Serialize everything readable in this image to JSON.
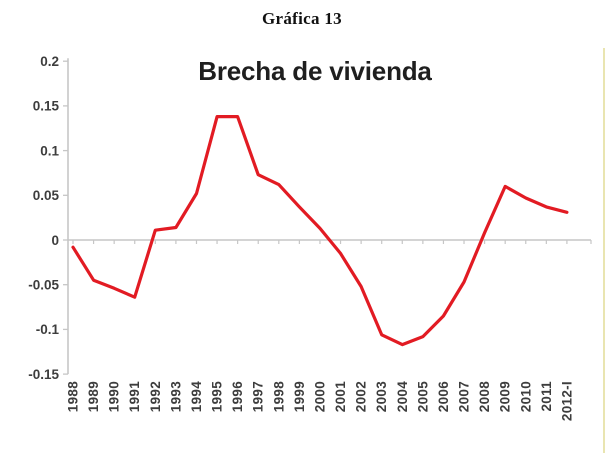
{
  "figure": {
    "label": "Gráfica 13"
  },
  "chart_data": {
    "type": "line",
    "title": "Brecha de vivienda",
    "xlabel": "",
    "ylabel": "",
    "categories": [
      "1988",
      "1989",
      "1990",
      "1991",
      "1992",
      "1993",
      "1994",
      "1995",
      "1996",
      "1997",
      "1998",
      "1999",
      "2000",
      "2001",
      "2002",
      "2003",
      "2004",
      "2005",
      "2006",
      "2007",
      "2008",
      "2009",
      "2010",
      "2011",
      "2012-I"
    ],
    "series": [
      {
        "name": "Brecha de vivienda",
        "color": "#e21b23",
        "values": [
          -0.008,
          -0.045,
          -0.054,
          -0.064,
          0.011,
          0.014,
          0.052,
          0.138,
          0.138,
          0.073,
          0.062,
          0.037,
          0.013,
          -0.015,
          -0.052,
          -0.106,
          -0.117,
          -0.108,
          -0.085,
          -0.047,
          0.008,
          0.06,
          0.047,
          0.037,
          0.031
        ]
      }
    ],
    "ylim": [
      -0.15,
      0.2
    ],
    "yticks": [
      {
        "value": 0.2,
        "label": "0.2"
      },
      {
        "value": 0.15,
        "label": "0.15"
      },
      {
        "value": 0.1,
        "label": "0.1"
      },
      {
        "value": 0.05,
        "label": "0.05"
      },
      {
        "value": 0,
        "label": "0"
      },
      {
        "value": -0.05,
        "label": "-0.05"
      },
      {
        "value": -0.1,
        "label": "-0.1"
      },
      {
        "value": -0.15,
        "label": "-0.15"
      }
    ],
    "grid": "off",
    "legend": "none",
    "axis_color": "#c6c6c6",
    "tick_label_color": "#3d3d3d",
    "title_color": "#1f1f1f"
  },
  "decor": {
    "page_edge_color": "#e9e5b1"
  }
}
